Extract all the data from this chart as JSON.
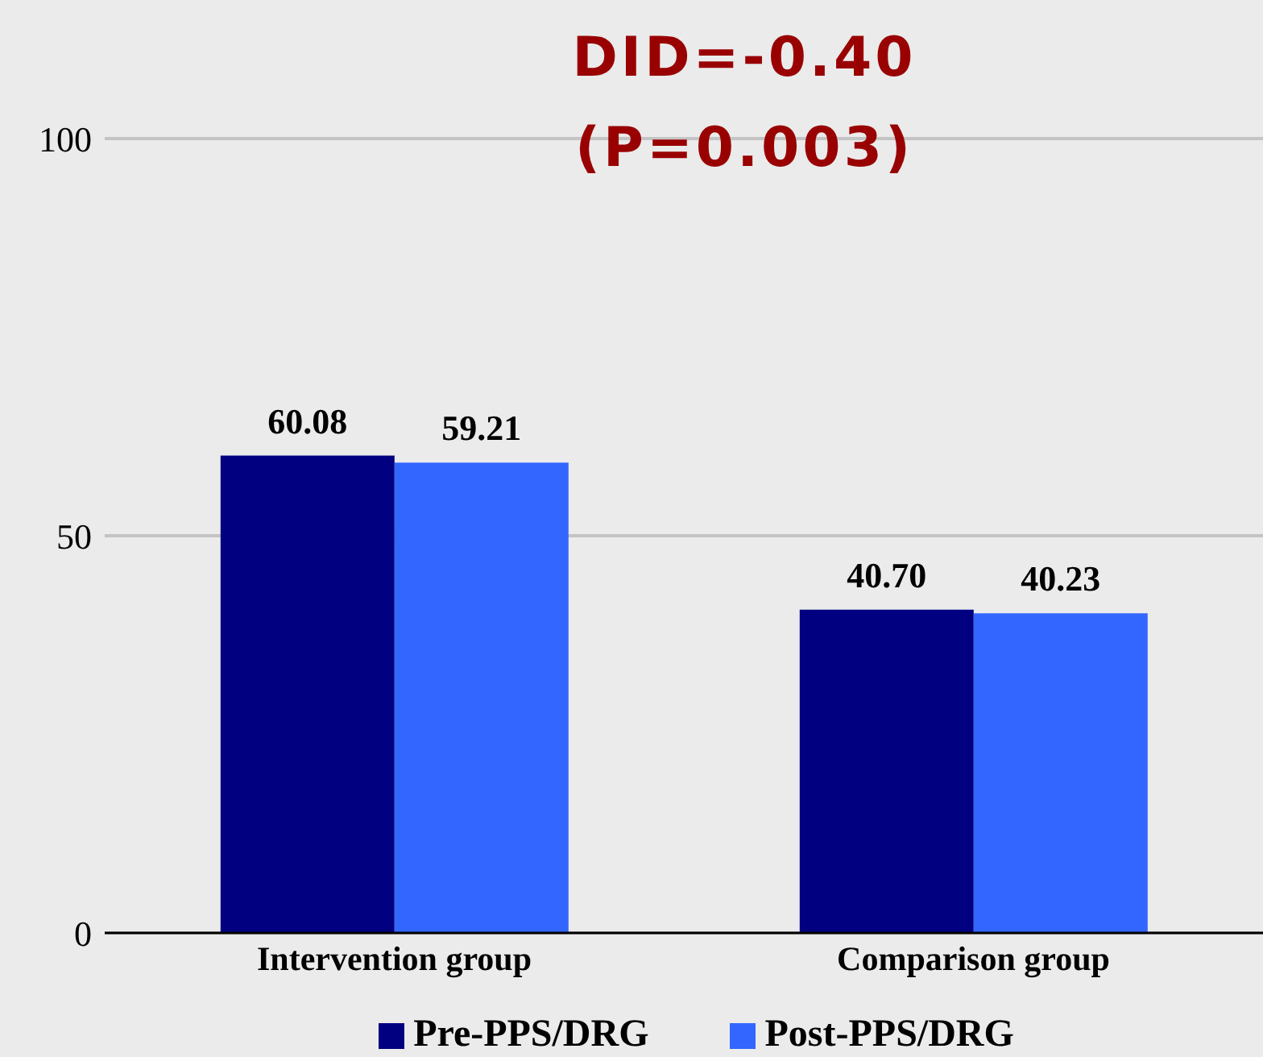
{
  "chart_data": {
    "type": "bar",
    "annotations": [
      "DID=-0.40",
      "(P=0.003)"
    ],
    "categories": [
      "Intervention group",
      "Comparison group"
    ],
    "series": [
      {
        "name": "Pre-PPS/DRG",
        "color": "#000080",
        "values": [
          60.08,
          40.7
        ],
        "value_labels": [
          "60.08",
          "40.70"
        ]
      },
      {
        "name": "Post-PPS/DRG",
        "color": "#3366ff",
        "values": [
          59.21,
          40.23
        ],
        "value_labels": [
          "59.21",
          "40.23"
        ]
      }
    ],
    "ylim": [
      0,
      100
    ],
    "yticks": [
      0,
      50,
      100
    ],
    "grid": "y",
    "legend": "bottom"
  }
}
